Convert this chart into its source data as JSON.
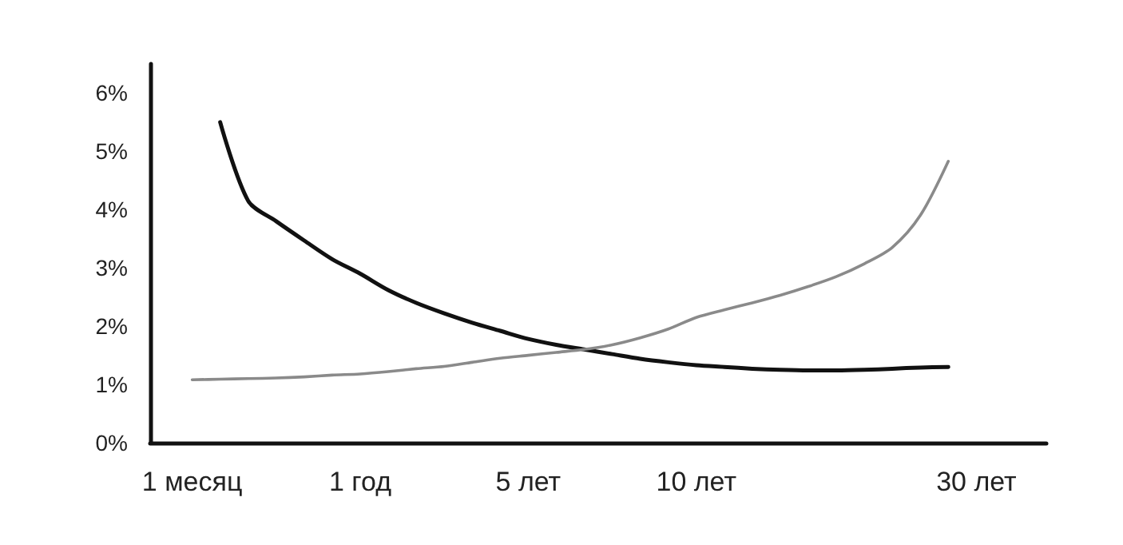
{
  "chart_data": {
    "type": "line",
    "categories": [
      null,
      "1 месяц",
      null,
      null,
      null,
      null,
      null,
      "1 год",
      null,
      null,
      null,
      null,
      null,
      "5 лет",
      null,
      null,
      null,
      null,
      null,
      "10 лет",
      null,
      null,
      null,
      null,
      null,
      null,
      null,
      null,
      null,
      "30 лет",
      null,
      null
    ],
    "series": [
      {
        "color": "#111111",
        "values": [
          null,
          null,
          5.5,
          4.15,
          3.8,
          3.47,
          3.15,
          2.9,
          2.62,
          2.4,
          2.22,
          2.06,
          1.92,
          1.78,
          1.68,
          1.6,
          1.52,
          1.44,
          1.38,
          1.33,
          1.3,
          1.27,
          1.25,
          1.24,
          1.24,
          1.25,
          1.27,
          1.29,
          1.3,
          null,
          null,
          null
        ]
      },
      {
        "color": "#8a8a8a",
        "values": [
          null,
          1.08,
          1.09,
          1.1,
          1.11,
          1.13,
          1.16,
          1.18,
          1.22,
          1.27,
          1.31,
          1.38,
          1.45,
          1.5,
          1.55,
          1.6,
          1.68,
          1.8,
          1.95,
          2.15,
          2.28,
          2.4,
          2.53,
          2.68,
          2.85,
          3.07,
          3.35,
          3.9,
          4.83,
          null,
          null,
          null
        ]
      }
    ],
    "ylim": [
      0,
      6.5
    ],
    "yticks": [
      {
        "value": 0,
        "label": "0%"
      },
      {
        "value": 1,
        "label": "1%"
      },
      {
        "value": 2,
        "label": "2%"
      },
      {
        "value": 3,
        "label": "3%"
      },
      {
        "value": 4,
        "label": "4%"
      },
      {
        "value": 5,
        "label": "5%"
      },
      {
        "value": 6,
        "label": "6%"
      }
    ],
    "grid": false,
    "marker": "none",
    "line_style": "solid"
  }
}
